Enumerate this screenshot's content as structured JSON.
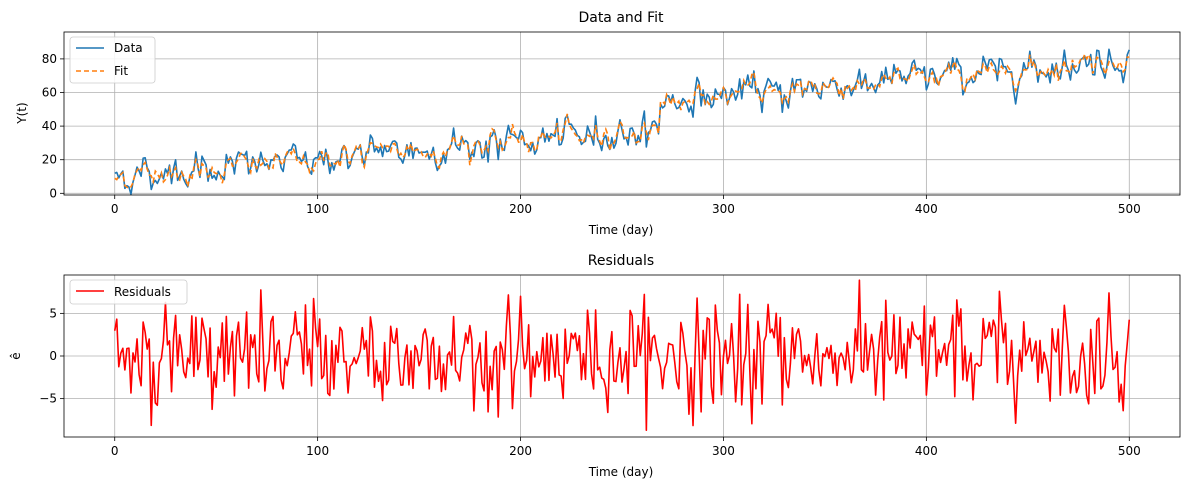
{
  "chart_data": [
    {
      "type": "line",
      "title": "Data and Fit",
      "xlabel": "Time (day)",
      "ylabel": "Y(t)",
      "xlim": [
        -25,
        525
      ],
      "ylim": [
        -1,
        96
      ],
      "xticks": [
        0,
        100,
        200,
        300,
        400,
        500
      ],
      "yticks": [
        0,
        20,
        40,
        60,
        80
      ],
      "grid": true,
      "legend": "upper-left",
      "x": {
        "start": 0,
        "end": 500,
        "step": 1
      },
      "trend": {
        "pre": {
          "start": 10,
          "end": 38,
          "days": [
            0,
            268
          ]
        },
        "post": {
          "start": 55,
          "end": 80,
          "days": [
            269,
            500
          ]
        }
      },
      "series": [
        {
          "name": "Data",
          "color": "#1f77b4",
          "style": "solid",
          "noise_amplitude": 4,
          "ar": 0.55
        },
        {
          "name": "Fit",
          "color": "#ff7f0e",
          "style": "dashed"
        }
      ]
    },
    {
      "type": "line",
      "title": "Residuals",
      "xlabel": "Time (day)",
      "ylabel": "ê",
      "xlim": [
        -25,
        525
      ],
      "ylim": [
        -9.5,
        9.5
      ],
      "xticks": [
        0,
        100,
        200,
        300,
        400,
        500
      ],
      "yticks": [
        -5,
        0,
        5
      ],
      "grid": true,
      "legend": "upper-left",
      "series": [
        {
          "name": "Residuals",
          "color": "#ff0000",
          "style": "solid",
          "range": [
            -8.7,
            8.9
          ]
        }
      ]
    }
  ]
}
